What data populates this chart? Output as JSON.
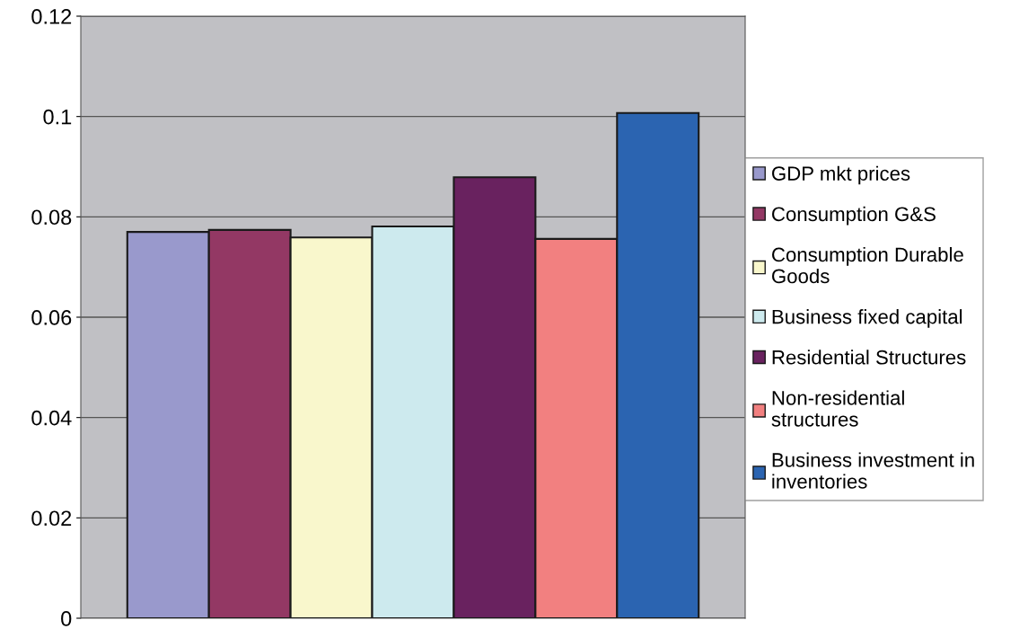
{
  "chart_data": {
    "type": "bar",
    "categories": [
      null
    ],
    "series": [
      {
        "name": "GDP mkt prices",
        "color": "#9999cc",
        "values": [
          0.077
        ]
      },
      {
        "name": "Consumption G&S",
        "color": "#933864",
        "values": [
          0.0774
        ]
      },
      {
        "name": "Consumption Durable\nGoods",
        "color": "#f9f7cc",
        "values": [
          0.0759
        ]
      },
      {
        "name": "Business fixed capital",
        "color": "#cdeaee",
        "values": [
          0.0781
        ]
      },
      {
        "name": "Residential Structures",
        "color": "#69225f",
        "values": [
          0.0879
        ]
      },
      {
        "name": "Non-residential\nstructures",
        "color": "#f28080",
        "values": [
          0.0756
        ]
      },
      {
        "name": "Business investment in\ninventories",
        "color": "#2b64b1",
        "values": [
          0.1007
        ]
      }
    ],
    "ylim": [
      0,
      0.12
    ],
    "yticks": [
      {
        "value": 0,
        "label": "0"
      },
      0.02,
      0.04,
      0.06,
      0.08,
      {
        "value": 0.1,
        "label": "0.1"
      },
      0.12
    ],
    "grid": "y",
    "legend": "right"
  }
}
